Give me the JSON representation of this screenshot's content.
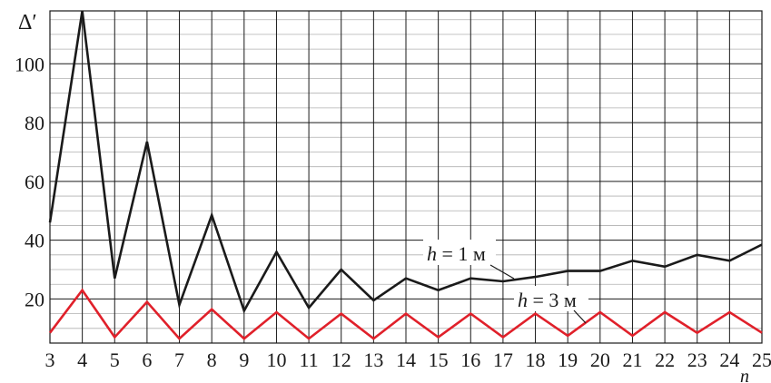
{
  "chart_data": {
    "type": "line",
    "ylabel": "Δ′",
    "xlabel": "n",
    "xlim": [
      3,
      25
    ],
    "ylim": [
      5,
      118
    ],
    "y_ticks": [
      20,
      40,
      60,
      80,
      100
    ],
    "x": [
      3,
      4,
      5,
      6,
      7,
      8,
      9,
      10,
      11,
      12,
      13,
      14,
      15,
      16,
      17,
      18,
      19,
      20,
      21,
      22,
      23,
      24,
      25
    ],
    "grid": true,
    "series": [
      {
        "name": "h = 1 м",
        "color": "#1a1a1a",
        "values": [
          46,
          118,
          27,
          73.5,
          18,
          48.5,
          16,
          36,
          17,
          30,
          19.5,
          27,
          23,
          27,
          26,
          27.5,
          29.5,
          29.5,
          33,
          31,
          35,
          33,
          38.5
        ]
      },
      {
        "name": "h = 3 м",
        "color": "#e0202a",
        "values": [
          8.5,
          23,
          7,
          19,
          6.5,
          16.5,
          6.5,
          15.5,
          6.5,
          15,
          6.5,
          15,
          7,
          15,
          7,
          15,
          7.5,
          15.5,
          7.5,
          15.5,
          8.5,
          15.5,
          8.5
        ]
      }
    ],
    "annotations": {
      "s0_var": "h",
      "s0_rest": " = 1 м",
      "s1_var": "h",
      "s1_rest": " = 3 м"
    }
  }
}
